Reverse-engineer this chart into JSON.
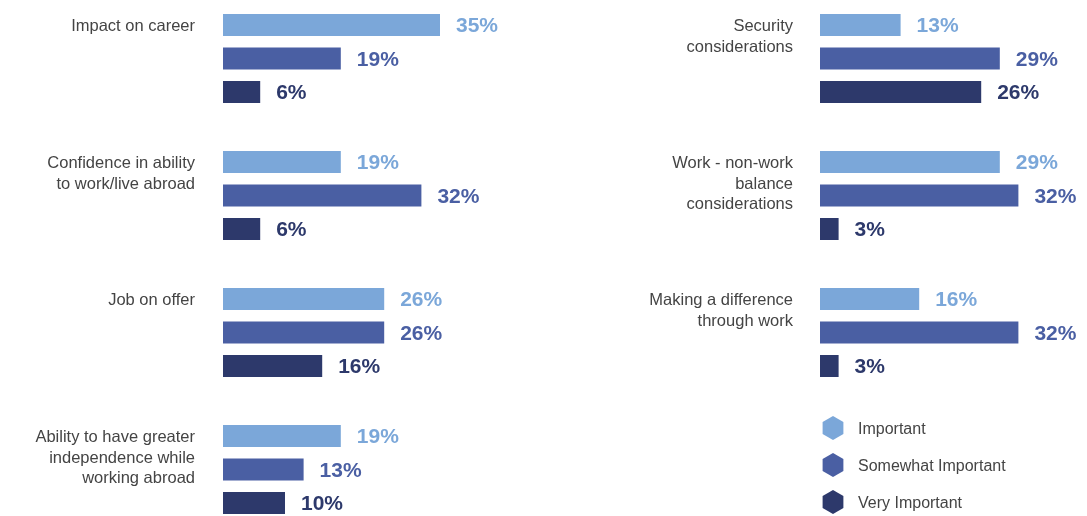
{
  "chart_data": [
    {
      "type": "bar",
      "orientation": "horizontal",
      "categories": [
        "Impact on career",
        "Confidence in ability to work/live abroad",
        "Job on offer",
        "Ability to have greater independence while working abroad"
      ],
      "tick_labels": "y",
      "legend": false,
      "series": [
        {
          "color": "#7ba7d9",
          "values": [
            35,
            19,
            26,
            19
          ],
          "value_labels": [
            "35%",
            "19%",
            "26%",
            "19%"
          ]
        },
        {
          "color": "#4a5fa3",
          "values": [
            19,
            32,
            26,
            13
          ],
          "value_labels": [
            "19%",
            "32%",
            "26%",
            "13%"
          ]
        },
        {
          "color": "#2d396b",
          "values": [
            6,
            6,
            16,
            10
          ],
          "value_labels": [
            "6%",
            "6%",
            "16%",
            "10%"
          ]
        }
      ]
    },
    {
      "type": "bar",
      "orientation": "horizontal",
      "categories": [
        "Security considerations",
        "Work - non-work balance considerations",
        "Making a difference through work"
      ],
      "tick_labels": "y",
      "legend": "bottom",
      "series": [
        {
          "name": "Important",
          "color": "#7ba7d9",
          "values": [
            13,
            29,
            16
          ],
          "value_labels": [
            "13%",
            "29%",
            "16%"
          ]
        },
        {
          "name": "Somewhat Important",
          "color": "#4a5fa3",
          "values": [
            29,
            32,
            32
          ],
          "value_labels": [
            "29%",
            "32%",
            "32%"
          ]
        },
        {
          "name": "Very Important",
          "color": "#2d396b",
          "values": [
            26,
            3,
            3
          ],
          "value_labels": [
            "26%",
            "3%",
            "3%"
          ]
        }
      ]
    }
  ]
}
